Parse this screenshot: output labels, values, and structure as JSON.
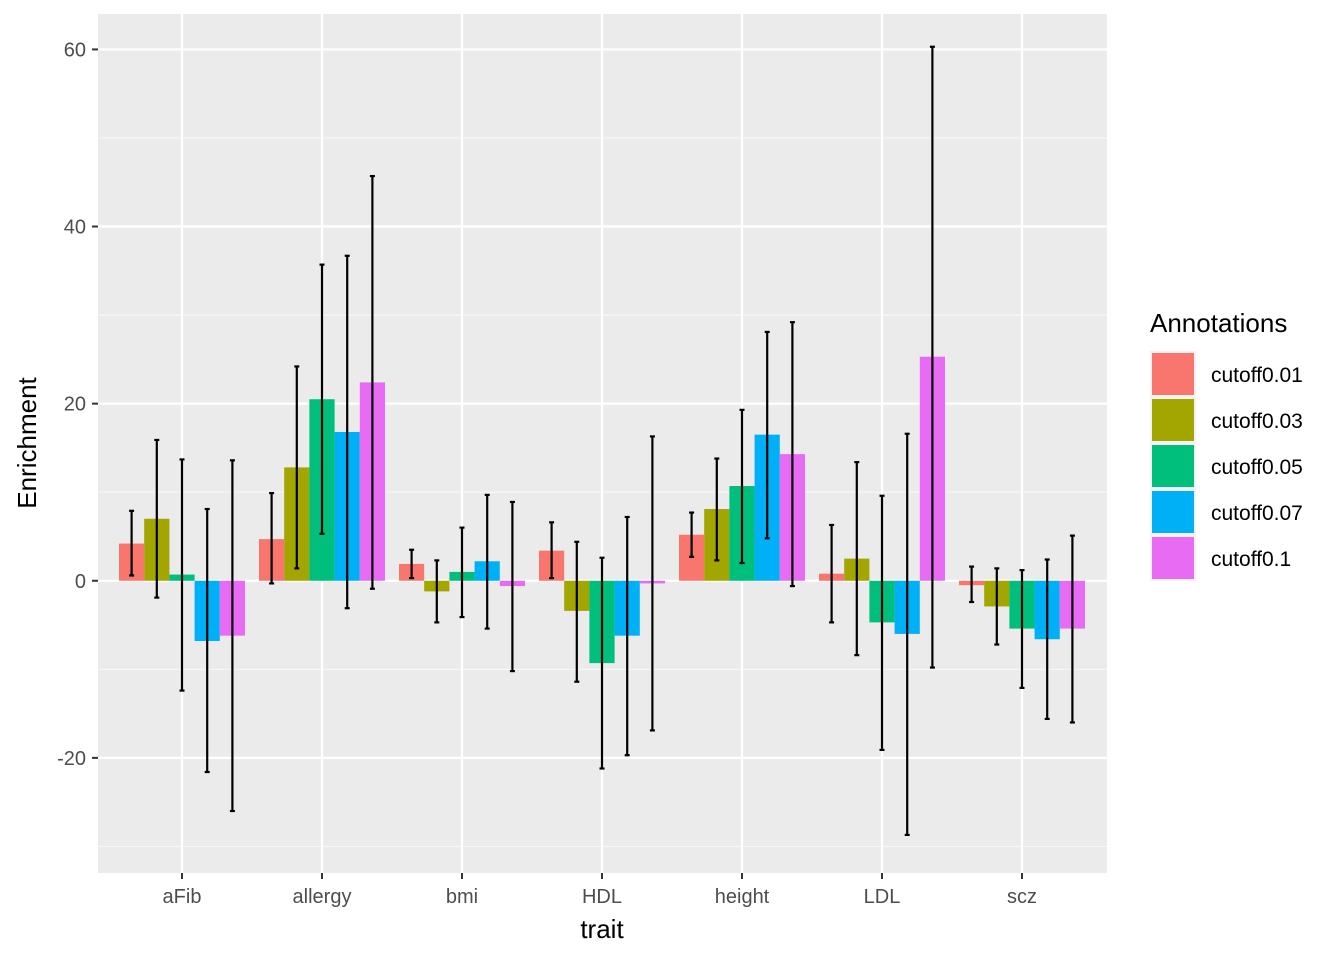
{
  "chart_data": {
    "type": "bar",
    "xlabel": "trait",
    "ylabel": "Enrichment",
    "ylim": [
      -33,
      64
    ],
    "yticks": [
      -20,
      0,
      20,
      40,
      60
    ],
    "ytick_labels": [
      "-20",
      "0",
      "20",
      "40",
      "60"
    ],
    "grid": true,
    "legend_position": "right",
    "legend_title": "Annotations",
    "categories": [
      "aFib",
      "allergy",
      "bmi",
      "HDL",
      "height",
      "LDL",
      "scz"
    ],
    "series": [
      {
        "name": "cutoff0.01",
        "color": "#F8766D",
        "values": [
          4.2,
          4.7,
          1.9,
          3.4,
          5.2,
          0.8,
          -0.5
        ],
        "err_low": [
          0.6,
          -0.3,
          0.3,
          0.3,
          2.7,
          -4.7,
          -2.4
        ],
        "err_high": [
          7.9,
          9.9,
          3.5,
          6.6,
          7.7,
          6.3,
          1.6
        ]
      },
      {
        "name": "cutoff0.03",
        "color": "#A3A500",
        "values": [
          7.0,
          12.8,
          -1.2,
          -3.4,
          8.1,
          2.5,
          -2.9
        ],
        "err_low": [
          -1.9,
          1.4,
          -4.7,
          -11.4,
          2.3,
          -8.4,
          -7.2
        ],
        "err_high": [
          15.9,
          24.2,
          2.3,
          4.4,
          13.8,
          13.4,
          1.4
        ]
      },
      {
        "name": "cutoff0.05",
        "color": "#00BF7D",
        "values": [
          0.7,
          20.5,
          1.0,
          -9.3,
          10.7,
          -4.7,
          -5.4
        ],
        "err_low": [
          -12.4,
          5.3,
          -4.1,
          -21.2,
          2.0,
          -19.1,
          -12.1
        ],
        "err_high": [
          13.7,
          35.7,
          6.0,
          2.6,
          19.3,
          9.6,
          1.2
        ]
      },
      {
        "name": "cutoff0.07",
        "color": "#00B0F6",
        "values": [
          -6.8,
          16.8,
          2.2,
          -6.2,
          16.5,
          -6.0,
          -6.6
        ],
        "err_low": [
          -21.6,
          -3.1,
          -5.4,
          -19.7,
          4.8,
          -28.7,
          -15.6
        ],
        "err_high": [
          8.1,
          36.7,
          9.7,
          7.2,
          28.1,
          16.6,
          2.4
        ]
      },
      {
        "name": "cutoff0.1",
        "color": "#E76BF3",
        "values": [
          -6.2,
          22.4,
          -0.6,
          -0.3,
          14.3,
          25.3,
          -5.4
        ],
        "err_low": [
          -26.0,
          -0.9,
          -10.2,
          -16.9,
          -0.6,
          -9.8,
          -16.0
        ],
        "err_high": [
          13.6,
          45.7,
          8.9,
          16.3,
          29.2,
          60.3,
          5.1
        ]
      }
    ]
  }
}
